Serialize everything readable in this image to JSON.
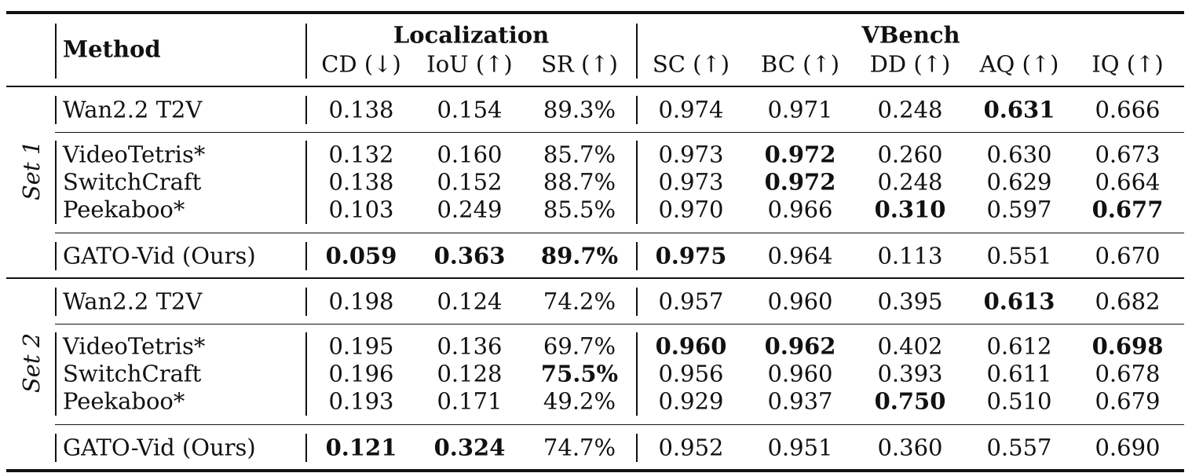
{
  "header": {
    "method": "Method",
    "group_localization": "Localization",
    "group_vbench": "VBench",
    "columns": [
      "CD (↓)",
      "IoU (↑)",
      "SR (↑)",
      "SC (↑)",
      "BC (↑)",
      "DD (↑)",
      "AQ (↑)",
      "IQ (↑)"
    ]
  },
  "sets": [
    {
      "label": "Set 1",
      "rows": [
        {
          "method": "Wan2.2 T2V",
          "values": [
            "0.138",
            "0.154",
            "89.3%",
            "0.974",
            "0.971",
            "0.248",
            "0.631",
            "0.666"
          ],
          "bold": [
            6
          ]
        },
        {
          "method": "VideoTetris*",
          "values": [
            "0.132",
            "0.160",
            "85.7%",
            "0.973",
            "0.972",
            "0.260",
            "0.630",
            "0.673"
          ],
          "bold": [
            4
          ]
        },
        {
          "method": "SwitchCraft",
          "values": [
            "0.138",
            "0.152",
            "88.7%",
            "0.973",
            "0.972",
            "0.248",
            "0.629",
            "0.664"
          ],
          "bold": [
            4
          ]
        },
        {
          "method": "Peekaboo*",
          "values": [
            "0.103",
            "0.249",
            "85.5%",
            "0.970",
            "0.966",
            "0.310",
            "0.597",
            "0.677"
          ],
          "bold": [
            5,
            7
          ]
        },
        {
          "method": "GATO-Vid (Ours)",
          "values": [
            "0.059",
            "0.363",
            "89.7%",
            "0.975",
            "0.964",
            "0.113",
            "0.551",
            "0.670"
          ],
          "bold": [
            0,
            1,
            2,
            3
          ]
        }
      ]
    },
    {
      "label": "Set 2",
      "rows": [
        {
          "method": "Wan2.2 T2V",
          "values": [
            "0.198",
            "0.124",
            "74.2%",
            "0.957",
            "0.960",
            "0.395",
            "0.613",
            "0.682"
          ],
          "bold": [
            6
          ]
        },
        {
          "method": "VideoTetris*",
          "values": [
            "0.195",
            "0.136",
            "69.7%",
            "0.960",
            "0.962",
            "0.402",
            "0.612",
            "0.698"
          ],
          "bold": [
            3,
            4,
            7
          ]
        },
        {
          "method": "SwitchCraft",
          "values": [
            "0.196",
            "0.128",
            "75.5%",
            "0.956",
            "0.960",
            "0.393",
            "0.611",
            "0.678"
          ],
          "bold": [
            2
          ]
        },
        {
          "method": "Peekaboo*",
          "values": [
            "0.193",
            "0.171",
            "49.2%",
            "0.929",
            "0.937",
            "0.750",
            "0.510",
            "0.679"
          ],
          "bold": [
            5
          ]
        },
        {
          "method": "GATO-Vid (Ours)",
          "values": [
            "0.121",
            "0.324",
            "74.7%",
            "0.952",
            "0.951",
            "0.360",
            "0.557",
            "0.690"
          ],
          "bold": [
            0,
            1
          ]
        }
      ]
    }
  ]
}
